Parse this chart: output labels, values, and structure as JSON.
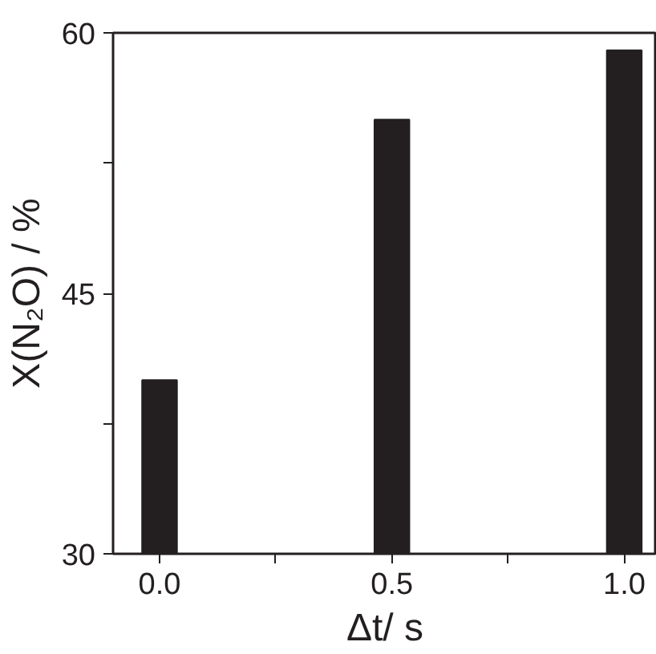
{
  "chart_data": {
    "type": "bar",
    "xlabel": "Δt/ s",
    "ylabel": "X(N₂O) / %",
    "x": [
      0.0,
      0.5,
      1.0
    ],
    "values": [
      40,
      55,
      59
    ],
    "color": "#231f20",
    "xlim": [
      -0.1,
      1.07
    ],
    "ylim": [
      30,
      60
    ],
    "xticks": [
      {
        "value": 0.0,
        "label": "0.0"
      },
      {
        "value": 0.25,
        "label": null
      },
      {
        "value": 0.5,
        "label": "0.5"
      },
      {
        "value": 0.75,
        "label": null
      },
      {
        "value": 1.0,
        "label": "1.0"
      }
    ],
    "yticks": [
      30,
      {
        "value": 37.5,
        "label": null
      },
      45,
      {
        "value": 52.5,
        "label": null
      },
      60
    ],
    "grid": false
  }
}
